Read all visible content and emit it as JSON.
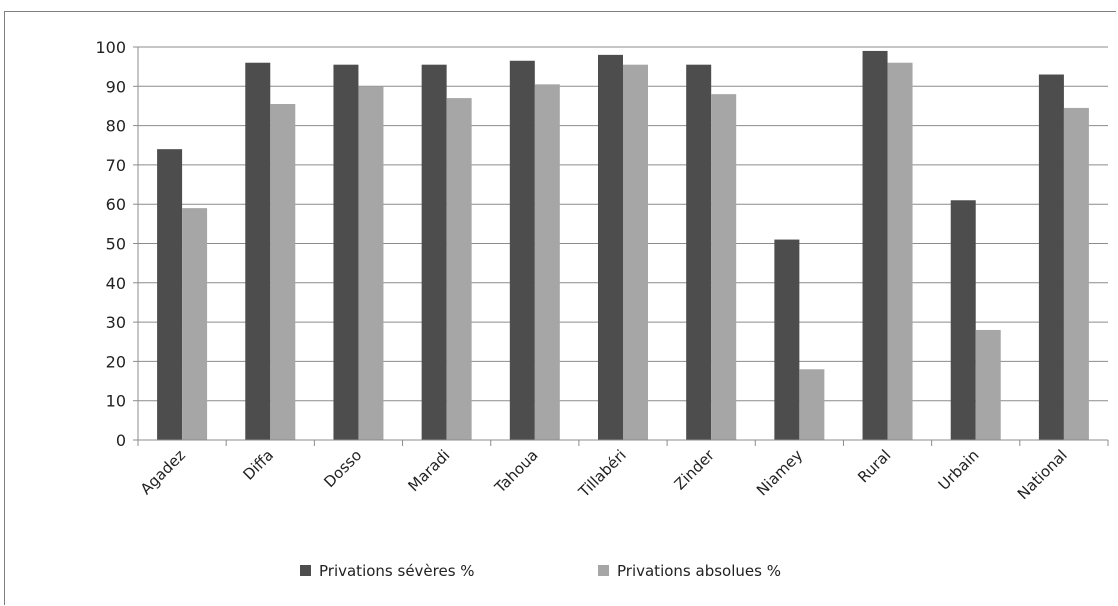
{
  "chart_data": {
    "type": "bar",
    "title": "",
    "xlabel": "",
    "ylabel": "",
    "ylim": [
      0,
      100
    ],
    "yticks": [
      0,
      10,
      20,
      30,
      40,
      50,
      60,
      70,
      80,
      90,
      100
    ],
    "grid": true,
    "legend_position": "bottom",
    "categories": [
      "Agadez",
      "Diffa",
      "Dosso",
      "Maradi",
      "Tahoua",
      "Tillabéri",
      "Zinder",
      "Niamey",
      "Rural",
      "Urbain",
      "National"
    ],
    "series": [
      {
        "name": "Privations sévères %",
        "color": "#4d4d4d",
        "values": [
          74,
          96,
          95.5,
          95.5,
          96.5,
          98,
          95.5,
          51,
          99,
          61,
          93
        ]
      },
      {
        "name": "Privations absolues %",
        "color": "#a6a6a6",
        "values": [
          59,
          85.5,
          90,
          87,
          90.5,
          95.5,
          88,
          18,
          96,
          28,
          84.5
        ]
      }
    ]
  }
}
